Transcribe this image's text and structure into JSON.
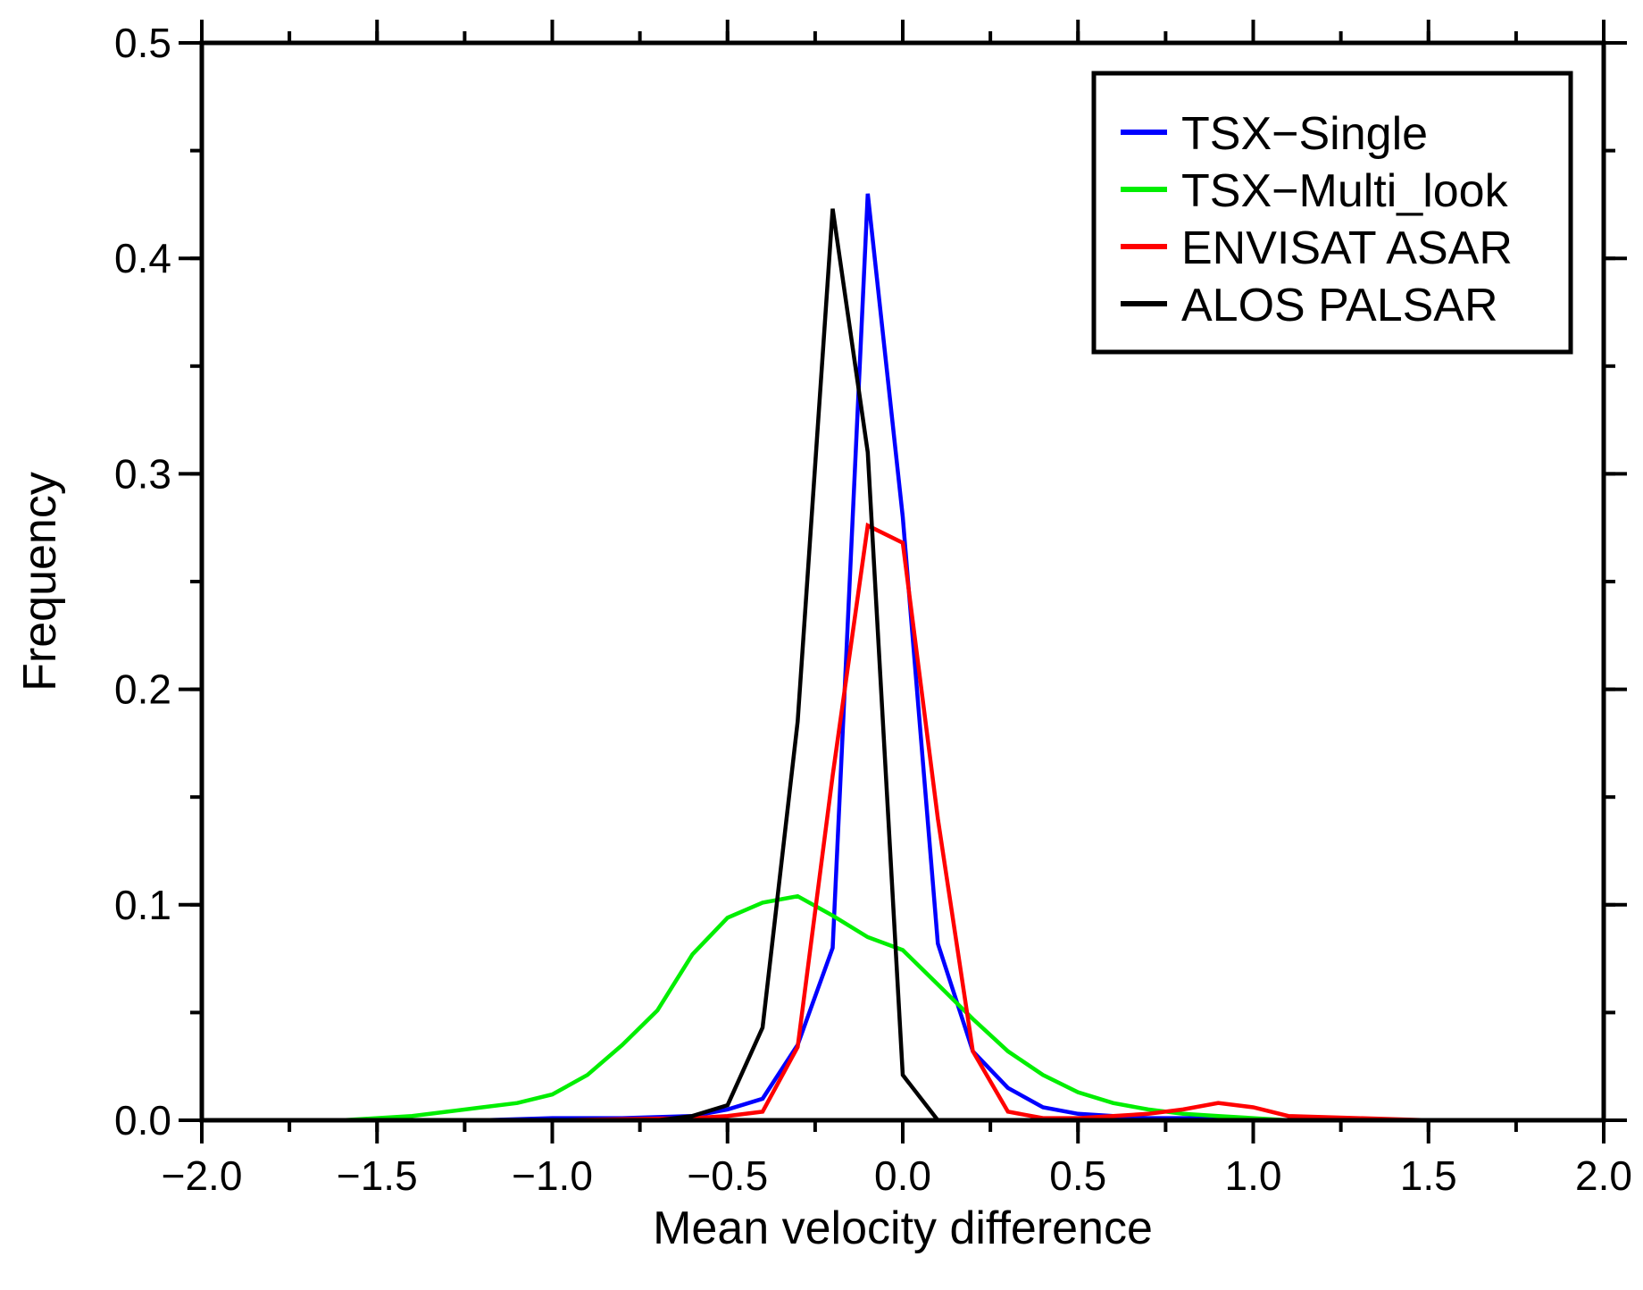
{
  "chart_data": {
    "type": "line",
    "title": "",
    "xlabel": "Mean velocity difference",
    "ylabel": "Frequency",
    "xlim": [
      -2.0,
      2.0
    ],
    "ylim": [
      0.0,
      0.5
    ],
    "xticks": [
      -2.0,
      -1.5,
      -1.0,
      -0.5,
      0.0,
      0.5,
      1.0,
      1.5,
      2.0
    ],
    "xtick_labels": [
      "−2.0",
      "−1.5",
      "−1.0",
      "−0.5",
      "0.0",
      "0.5",
      "1.0",
      "1.5",
      "2.0"
    ],
    "yticks": [
      0.0,
      0.1,
      0.2,
      0.3,
      0.4,
      0.5
    ],
    "ytick_labels": [
      "0.0",
      "0.1",
      "0.2",
      "0.3",
      "0.4",
      "0.5"
    ],
    "x_minor_step": 0.25,
    "y_minor_step": 0.05,
    "legend_position": "top-right",
    "series": [
      {
        "name": "TSX−Single",
        "color": "#0000ff",
        "x": [
          -2.0,
          -1.5,
          -1.2,
          -1.0,
          -0.8,
          -0.6,
          -0.5,
          -0.4,
          -0.3,
          -0.2,
          -0.1,
          0.0,
          0.1,
          0.2,
          0.3,
          0.4,
          0.5,
          0.6,
          0.7,
          0.8,
          0.9,
          1.0,
          1.5,
          2.0
        ],
        "values": [
          0.0,
          0.0,
          0.0,
          0.001,
          0.001,
          0.002,
          0.005,
          0.01,
          0.035,
          0.08,
          0.43,
          0.28,
          0.082,
          0.032,
          0.015,
          0.006,
          0.003,
          0.002,
          0.001,
          0.001,
          0.001,
          0.0,
          0.0,
          0.0
        ]
      },
      {
        "name": "TSX−Multi_look",
        "color": "#00ee00",
        "x": [
          -2.0,
          -1.6,
          -1.5,
          -1.4,
          -1.3,
          -1.2,
          -1.1,
          -1.0,
          -0.9,
          -0.8,
          -0.7,
          -0.6,
          -0.5,
          -0.4,
          -0.3,
          -0.2,
          -0.1,
          0.0,
          0.1,
          0.2,
          0.3,
          0.4,
          0.5,
          0.6,
          0.7,
          0.8,
          0.9,
          1.0,
          1.1,
          1.5,
          2.0
        ],
        "values": [
          0.0,
          0.0,
          0.001,
          0.002,
          0.004,
          0.006,
          0.008,
          0.012,
          0.021,
          0.035,
          0.051,
          0.077,
          0.094,
          0.101,
          0.104,
          0.095,
          0.085,
          0.079,
          0.063,
          0.047,
          0.032,
          0.021,
          0.013,
          0.008,
          0.005,
          0.003,
          0.002,
          0.001,
          0.0,
          0.0,
          0.0
        ]
      },
      {
        "name": "ENVISAT ASAR",
        "color": "#ff0000",
        "x": [
          -2.0,
          -1.5,
          -1.0,
          -0.6,
          -0.5,
          -0.4,
          -0.3,
          -0.2,
          -0.1,
          0.0,
          0.1,
          0.2,
          0.3,
          0.4,
          0.5,
          0.6,
          0.7,
          0.8,
          0.9,
          1.0,
          1.1,
          1.3,
          1.5,
          1.7,
          1.8,
          2.0
        ],
        "values": [
          0.0,
          0.0,
          0.0,
          0.001,
          0.002,
          0.004,
          0.034,
          0.16,
          0.276,
          0.268,
          0.14,
          0.032,
          0.004,
          0.001,
          0.001,
          0.002,
          0.003,
          0.005,
          0.008,
          0.006,
          0.002,
          0.001,
          0.0,
          0.0,
          0.0,
          0.0
        ]
      },
      {
        "name": "ALOS PALSAR",
        "color": "#000000",
        "x": [
          -2.0,
          -1.0,
          -0.7,
          -0.6,
          -0.5,
          -0.4,
          -0.3,
          -0.2,
          -0.1,
          0.0,
          0.1,
          0.2,
          1.0,
          2.0
        ],
        "values": [
          0.0,
          0.0,
          0.0,
          0.002,
          0.007,
          0.043,
          0.185,
          0.423,
          0.31,
          0.021,
          0.0,
          0.0,
          0.0,
          0.0
        ]
      }
    ]
  }
}
